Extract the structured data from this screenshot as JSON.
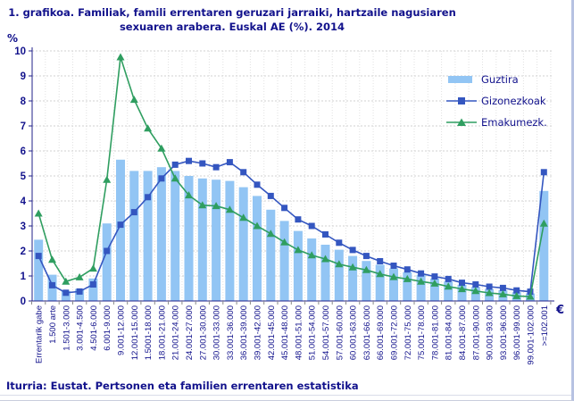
{
  "title": {
    "line1": "1. grafikoa. Familiak, famili errentaren geruzari jarraiki, hartzaile nagusiaren",
    "line2": "sexuaren arabera. Euskal AE (%). 2014"
  },
  "y_axis_unit": "%",
  "x_axis_unit": "€",
  "footer": "Iturria: Eustat. Pertsonen eta familien errentaren estatistika",
  "colors": {
    "text_navy": "#12128c",
    "bar_fill": "#92c5f4",
    "line_men": "#3456c0",
    "line_women": "#2f9e60",
    "gridline": "#d2d2d2",
    "axis": "#20208a",
    "tick": "#8a8a8a"
  },
  "legend": [
    {
      "label": "Guztira",
      "kind": "bar"
    },
    {
      "label": "Gizonezkoak",
      "kind": "line-square"
    },
    {
      "label": "Emakumezk.",
      "kind": "line-triangle"
    }
  ],
  "chart_data": {
    "type": "bar",
    "subtype": "bar-plus-lines",
    "title": "1. grafikoa. Familiak, famili errentaren geruzari jarraiki, hartzaile nagusiaren sexuaren arabera. Euskal AE (%). 2014",
    "xlabel": "€",
    "ylabel": "%",
    "ylim": [
      0,
      10
    ],
    "y_ticks": [
      0,
      1,
      2,
      3,
      4,
      5,
      6,
      7,
      8,
      9,
      10
    ],
    "grid": true,
    "legend_position": "right-top",
    "categories": [
      "Errentarik gabe",
      "1.500 arte",
      "1.501-3.000",
      "3.001-4.500",
      "4.501-6.000",
      "6.001-9.000",
      "9.001-12.000",
      "12.001-15.000",
      "1.5001-18.000",
      "18.001-21.000",
      "21.001-24.000",
      "24.001-27.000",
      "27.001-30.000",
      "30.001-33.000",
      "33.001-36.000",
      "36.001-39.000",
      "39.001-42.000",
      "42.001-45.000",
      "45.001-48.000",
      "48.001-51.000",
      "51.001-54.000",
      "54.001-57.000",
      "57.001-60.000",
      "60.001-63.000",
      "63.001-66.000",
      "66.001-69.000",
      "69.001-72.000",
      "72.001-75.000",
      "75.001-78.000",
      "78.001-81.000",
      "81.001-84.000",
      "84.001-87.000",
      "87.001-90.000",
      "90.001-93.000",
      "93.001-96.000",
      "96.001-99.000",
      "99.001-102.000",
      ">=102.001"
    ],
    "series": [
      {
        "name": "Guztira",
        "type": "bar",
        "color": "#92c5f4",
        "values": [
          2.45,
          1.05,
          0.4,
          0.48,
          0.9,
          3.1,
          5.65,
          5.2,
          5.2,
          5.35,
          5.2,
          5.0,
          4.9,
          4.85,
          4.8,
          4.55,
          4.2,
          3.65,
          3.2,
          2.8,
          2.5,
          2.25,
          2.05,
          1.8,
          1.6,
          1.45,
          1.3,
          1.15,
          1.05,
          0.9,
          0.78,
          0.65,
          0.56,
          0.48,
          0.43,
          0.35,
          0.3,
          4.4
        ]
      },
      {
        "name": "Gizonezkoak",
        "type": "line",
        "marker": "square",
        "color": "#3456c0",
        "values": [
          1.8,
          0.63,
          0.33,
          0.38,
          0.66,
          2.0,
          3.05,
          3.55,
          4.15,
          4.9,
          5.45,
          5.6,
          5.5,
          5.35,
          5.55,
          5.15,
          4.65,
          4.2,
          3.72,
          3.26,
          3.0,
          2.66,
          2.33,
          2.04,
          1.8,
          1.59,
          1.41,
          1.26,
          1.1,
          0.98,
          0.88,
          0.73,
          0.66,
          0.57,
          0.52,
          0.42,
          0.37,
          5.15
        ]
      },
      {
        "name": "Emakumezk.",
        "type": "line",
        "marker": "triangle",
        "color": "#2f9e60",
        "values": [
          3.5,
          1.65,
          0.78,
          0.95,
          1.3,
          4.85,
          9.75,
          8.05,
          6.9,
          6.1,
          4.9,
          4.23,
          3.83,
          3.8,
          3.65,
          3.33,
          3.0,
          2.69,
          2.35,
          2.04,
          1.83,
          1.68,
          1.47,
          1.35,
          1.24,
          1.08,
          0.96,
          0.88,
          0.78,
          0.7,
          0.58,
          0.48,
          0.4,
          0.32,
          0.27,
          0.2,
          0.18,
          3.1
        ]
      }
    ]
  }
}
